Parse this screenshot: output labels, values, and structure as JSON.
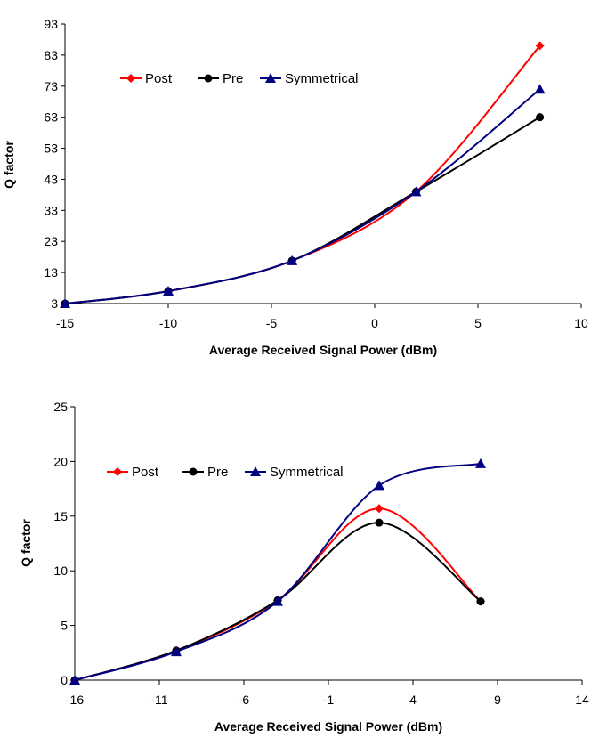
{
  "chart_data": [
    {
      "type": "line",
      "xlabel": "Average Received Signal Power (dBm)",
      "ylabel": "Q factor",
      "xlim": [
        -15,
        10
      ],
      "ylim": [
        3,
        93
      ],
      "xticks": [
        -15,
        -10,
        -5,
        0,
        5,
        10
      ],
      "yticks": [
        3,
        13,
        23,
        33,
        43,
        53,
        63,
        73,
        83,
        93
      ],
      "x": [
        -15,
        -10,
        -4,
        2,
        8
      ],
      "legend": "top-left",
      "grid": false,
      "series": [
        {
          "name": "Post",
          "color": "#ff0000",
          "marker": "diamond",
          "values": [
            3,
            7,
            16.8,
            39,
            86
          ]
        },
        {
          "name": "Pre",
          "color": "#000000",
          "marker": "circle",
          "values": [
            3,
            7,
            16.8,
            39,
            63
          ]
        },
        {
          "name": "Symmetrical",
          "color": "#000080",
          "marker": "triangle",
          "values": [
            3,
            7,
            16.8,
            39,
            72
          ]
        }
      ]
    },
    {
      "type": "line",
      "xlabel": "Average Received Signal Power (dBm)",
      "ylabel": "Q factor",
      "xlim": [
        -16,
        14
      ],
      "ylim": [
        0,
        25
      ],
      "xticks": [
        -16,
        -11,
        -6,
        -1,
        4,
        9,
        14
      ],
      "yticks": [
        0,
        5,
        10,
        15,
        20,
        25
      ],
      "x": [
        -16,
        -10,
        -4,
        2,
        8
      ],
      "legend": "top-left",
      "grid": false,
      "series": [
        {
          "name": "Post",
          "color": "#ff0000",
          "marker": "diamond",
          "values": [
            0,
            2.7,
            7.3,
            15.7,
            7.2
          ]
        },
        {
          "name": "Pre",
          "color": "#000000",
          "marker": "circle",
          "values": [
            0,
            2.7,
            7.3,
            14.4,
            7.2
          ]
        },
        {
          "name": "Symmetrical",
          "color": "#000080",
          "marker": "triangle",
          "values": [
            0,
            2.6,
            7.2,
            17.8,
            19.8
          ]
        }
      ]
    }
  ]
}
